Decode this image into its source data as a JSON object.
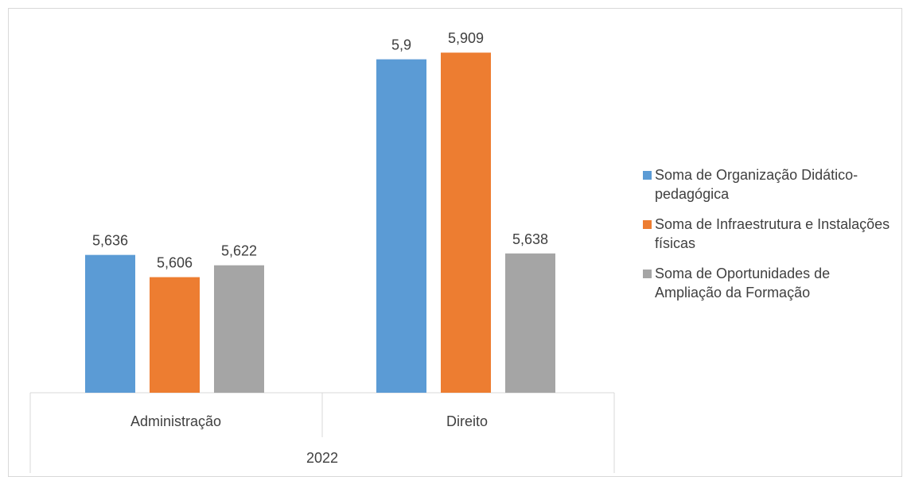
{
  "chart_data": {
    "type": "bar",
    "group_label": "2022",
    "categories": [
      "Administração",
      "Direito"
    ],
    "series": [
      {
        "name": "Soma de Organização Didático-pedagógica",
        "color": "#5b9bd5",
        "values": [
          5.636,
          5.9
        ],
        "labels": [
          "5,636",
          "5,9"
        ]
      },
      {
        "name": "Soma de Infraestrutura e Instalações físicas",
        "color": "#ed7d31",
        "values": [
          5.606,
          5.909
        ],
        "labels": [
          "5,606",
          "5,909"
        ]
      },
      {
        "name": "Soma de Oportunidades de Ampliação da Formação",
        "color": "#a5a5a5",
        "values": [
          5.622,
          5.638
        ],
        "labels": [
          "5,622",
          "5,638"
        ]
      }
    ],
    "ylim": [
      5.45,
      5.95
    ],
    "grid": false,
    "legend_position": "right"
  }
}
